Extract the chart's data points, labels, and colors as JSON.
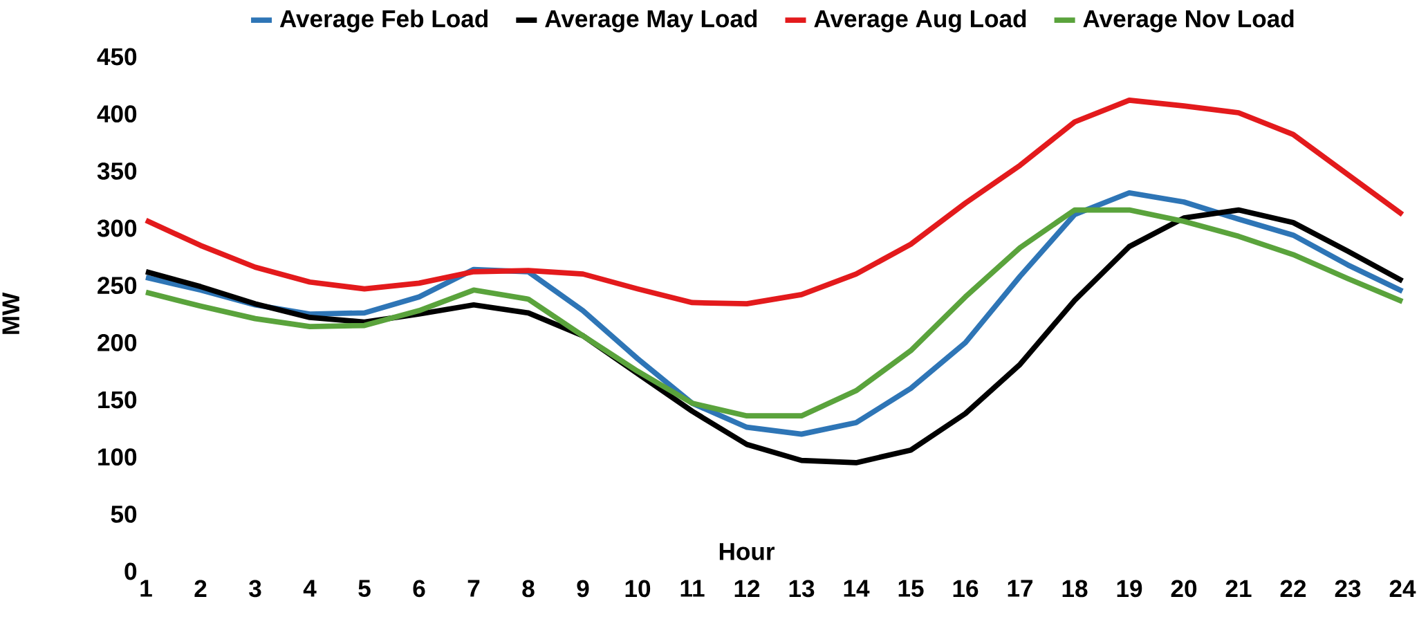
{
  "chart_data": {
    "type": "line",
    "xlabel": "Hour",
    "ylabel": "MW",
    "categories": [
      "1",
      "2",
      "3",
      "4",
      "5",
      "6",
      "7",
      "8",
      "9",
      "10",
      "11",
      "12",
      "13",
      "14",
      "15",
      "16",
      "17",
      "18",
      "19",
      "20",
      "21",
      "22",
      "23",
      "24"
    ],
    "ylim": [
      0,
      450
    ],
    "yticks": [
      0,
      50,
      100,
      150,
      200,
      250,
      300,
      350,
      400,
      450
    ],
    "legend": "top",
    "marker": "none",
    "line_style": "solid",
    "series": [
      {
        "name": "Average Feb Load",
        "color": "#2e75b6",
        "values": [
          257,
          246,
          233,
          225,
          226,
          240,
          264,
          262,
          228,
          186,
          147,
          126,
          120,
          130,
          160,
          200,
          258,
          312,
          331,
          323,
          308,
          294,
          268,
          245
        ]
      },
      {
        "name": "Average May Load",
        "color": "#000000",
        "values": [
          262,
          249,
          234,
          222,
          218,
          225,
          233,
          226,
          206,
          173,
          140,
          111,
          97,
          95,
          106,
          138,
          181,
          237,
          284,
          309,
          316,
          305,
          280,
          254
        ]
      },
      {
        "name": "Average Aug Load",
        "color": "#e31a1c",
        "values": [
          307,
          285,
          266,
          253,
          247,
          252,
          262,
          263,
          260,
          247,
          235,
          234,
          242,
          260,
          286,
          322,
          355,
          393,
          412,
          407,
          401,
          382,
          347,
          312
        ]
      },
      {
        "name": "Average Nov Load",
        "color": "#5aa33c",
        "values": [
          244,
          232,
          221,
          214,
          215,
          228,
          246,
          238,
          206,
          175,
          147,
          136,
          136,
          158,
          193,
          240,
          283,
          316,
          316,
          306,
          293,
          277,
          256,
          236
        ]
      }
    ]
  }
}
